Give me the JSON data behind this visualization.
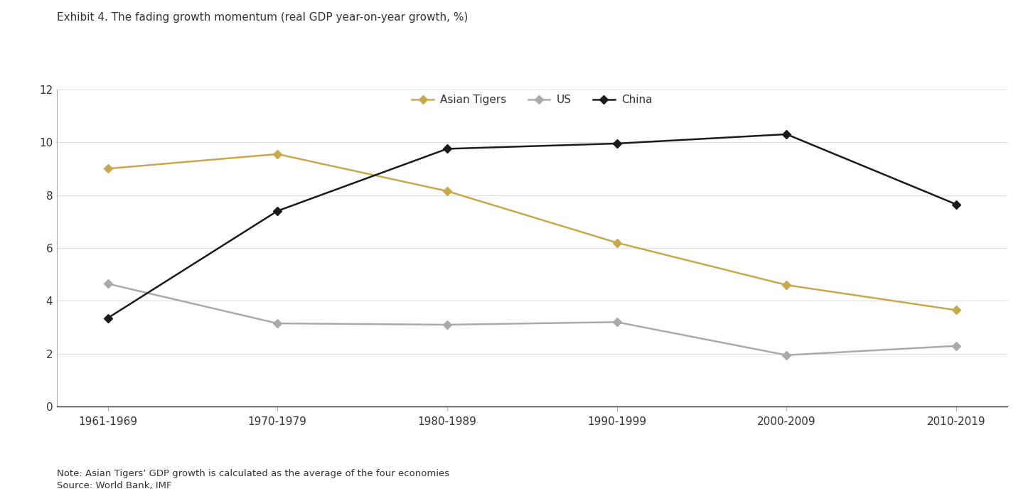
{
  "title": "Exhibit 4. The fading growth momentum (real GDP year-on-year growth, %)",
  "categories": [
    "1961-1969",
    "1970-1979",
    "1980-1989",
    "1990-1999",
    "2000-2009",
    "2010-2019"
  ],
  "asian_tigers": [
    9.0,
    9.55,
    8.15,
    6.2,
    4.6,
    3.65
  ],
  "us": [
    4.65,
    3.15,
    3.1,
    3.2,
    1.95,
    2.3
  ],
  "china": [
    3.35,
    7.4,
    9.75,
    9.95,
    10.3,
    7.65
  ],
  "asian_tigers_color": "#C8A84B",
  "us_color": "#AAAAAA",
  "china_color": "#1A1A1A",
  "ylim": [
    0,
    12
  ],
  "yticks": [
    0,
    2,
    4,
    6,
    8,
    10,
    12
  ],
  "legend_labels": [
    "Asian Tigers",
    "US",
    "China"
  ],
  "note_line1": "Note: Asian Tigers’ GDP growth is calculated as the average of the four economies",
  "note_line2": "Source: World Bank, IMF",
  "background_color": "#FFFFFF",
  "marker_style": "D",
  "linewidth": 1.8,
  "markersize": 6
}
